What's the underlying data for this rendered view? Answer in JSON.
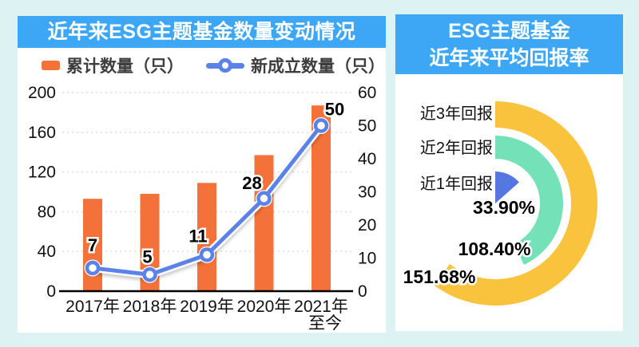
{
  "colors": {
    "page_background": "#DDF3F3",
    "panel_header_blue": "#3DA7F5",
    "bar_orange": "#F4713A",
    "line_blue": "#5B82E8",
    "donut_yellow": "#FAC33E",
    "donut_teal": "#74E1B8",
    "donut_blue": "#5577E0",
    "grid_line": "#D4E4EA",
    "axis_text": "#111111"
  },
  "left_panel": {
    "title": "近年来ESG主题基金数量变动情况"
  },
  "right_panel": {
    "title_line1": "ESG主题基金",
    "title_line2": "近年来平均回报率"
  },
  "chart_data": [
    {
      "type": "bar+line",
      "title": "近年来ESG主题基金数量变动情况",
      "categories": [
        "2017年",
        "2018年",
        "2019年",
        "2020年",
        "2021年至今"
      ],
      "category_lines": [
        [
          "2017年"
        ],
        [
          "2018年"
        ],
        [
          "2019年"
        ],
        [
          "2020年"
        ],
        [
          "2021年",
          "至今"
        ]
      ],
      "series": [
        {
          "name": "累计数量（只）",
          "type": "bar",
          "axis": "left",
          "color": "#F4713A",
          "values": [
            93,
            98,
            109,
            137,
            187
          ]
        },
        {
          "name": "新成立数量（只）",
          "type": "line",
          "axis": "right",
          "color": "#5B82E8",
          "values": [
            7,
            5,
            11,
            28,
            50
          ],
          "labels": [
            "7",
            "5",
            "11",
            "28",
            "50"
          ]
        }
      ],
      "left_axis": {
        "min": 0,
        "max": 200,
        "ticks": [
          0,
          40,
          80,
          120,
          160,
          200
        ]
      },
      "right_axis": {
        "min": 0,
        "max": 60,
        "ticks": [
          0,
          10,
          20,
          30,
          40,
          50,
          60
        ]
      },
      "grid": "dotted horizontal lines at left-axis ticks",
      "legend_position": "top"
    },
    {
      "type": "radial-bar",
      "title": "ESG主题基金近年来平均回报率",
      "categories": [
        "近3年回报",
        "近2年回报",
        "近1年回报"
      ],
      "values": [
        151.68,
        108.4,
        33.9
      ],
      "value_labels": [
        "151.68%",
        "108.40%",
        "33.90%"
      ],
      "colors": [
        "#FAC33E",
        "#74E1B8",
        "#5577E0"
      ],
      "start_angle_deg": 0,
      "direction": "clockwise from 12 o'clock",
      "angle_scale_deg_per_percent": 1.43
    }
  ]
}
